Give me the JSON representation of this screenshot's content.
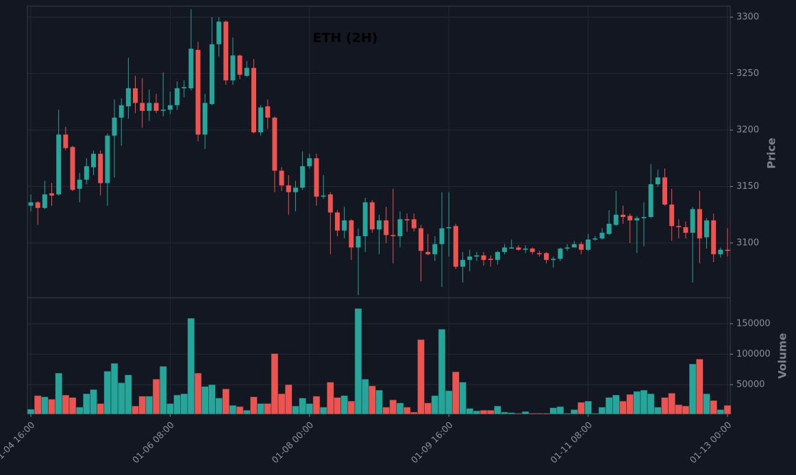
{
  "chart_data": {
    "type": "candlestick",
    "title": "ETH (2H)",
    "ylabel": "Price",
    "up_color": "#26a69a",
    "down_color": "#ef5350",
    "grid": true,
    "ylim": [
      3051.5,
      3309.7
    ],
    "yticks": [
      3100,
      3150,
      3200,
      3250,
      3300
    ],
    "categories": [
      "01-04 16:00",
      null,
      null,
      null,
      null,
      null,
      null,
      null,
      null,
      null,
      null,
      null,
      null,
      null,
      null,
      null,
      null,
      null,
      null,
      null,
      "01-06 08:00",
      null,
      null,
      null,
      null,
      null,
      null,
      null,
      null,
      null,
      null,
      null,
      null,
      null,
      null,
      null,
      null,
      null,
      null,
      null,
      "01-08 00:00",
      null,
      null,
      null,
      null,
      null,
      null,
      null,
      null,
      null,
      null,
      null,
      null,
      null,
      null,
      null,
      null,
      null,
      null,
      null,
      "01-09 16:00",
      null,
      null,
      null,
      null,
      null,
      null,
      null,
      null,
      null,
      null,
      null,
      null,
      null,
      null,
      null,
      null,
      null,
      null,
      null,
      "01-11 08:00",
      null,
      null,
      null,
      null,
      null,
      null,
      null,
      null,
      null,
      null,
      null,
      null,
      null,
      null,
      null,
      null,
      null,
      null,
      null,
      "01-13 00:00"
    ],
    "open": [
      3133,
      3136,
      3131,
      3144,
      3143,
      3196,
      3185,
      3148,
      3156,
      3167,
      3179,
      3153,
      3195,
      3211,
      3221,
      3237,
      3224,
      3217,
      3224,
      3217,
      3218,
      3222,
      3237,
      3237,
      3271,
      3196,
      3223,
      3276,
      3296,
      3244,
      3266,
      3248,
      3255,
      3198,
      3221,
      3211,
      3164,
      3151,
      3145,
      3149,
      3168,
      3175,
      3141,
      3143,
      3127,
      3111,
      3120,
      3096,
      3106,
      3136,
      3112,
      3120,
      3107,
      3106,
      3121,
      3121,
      3113,
      3092,
      3090,
      3099,
      3113,
      3115,
      3079,
      3085,
      3088,
      3089,
      3086,
      3085,
      3092,
      3095,
      3096,
      3094,
      3095,
      3091,
      3091,
      3085,
      3086,
      3095,
      3096,
      3099,
      3094,
      3103,
      3104,
      3108,
      3116,
      3125,
      3124,
      3120,
      3122,
      3123,
      3152,
      3158,
      3134,
      3115,
      3114,
      3109,
      3130,
      3105,
      3120,
      3090,
      3094
    ],
    "high": [
      3143,
      3137,
      3155,
      3153,
      3218,
      3203,
      3186,
      3162,
      3175,
      3182,
      3182,
      3197,
      3227,
      3228,
      3264,
      3248,
      3246,
      3236,
      3232,
      3251,
      3234,
      3243,
      3244,
      3307,
      3278,
      3232,
      3300,
      3300,
      3297,
      3282,
      3267,
      3261,
      3263,
      3222,
      3227,
      3212,
      3167,
      3160,
      3155,
      3181,
      3179,
      3179,
      3160,
      3145,
      3129,
      3132,
      3121,
      3113,
      3140,
      3138,
      3125,
      3132,
      3148,
      3128,
      3126,
      3126,
      3116,
      3108,
      3106,
      3145,
      3145,
      3117,
      3092,
      3094,
      3092,
      3092,
      3089,
      3093,
      3099,
      3103,
      3098,
      3098,
      3096,
      3093,
      3092,
      3088,
      3096,
      3099,
      3102,
      3101,
      3108,
      3106,
      3113,
      3129,
      3146,
      3133,
      3126,
      3124,
      3136,
      3170,
      3165,
      3166,
      3148,
      3121,
      3119,
      3132,
      3146,
      3122,
      3126,
      3096,
      3113
    ],
    "low": [
      3128,
      3116,
      3130,
      3133,
      3142,
      3182,
      3146,
      3136,
      3152,
      3160,
      3142,
      3133,
      3158,
      3186,
      3210,
      3215,
      3202,
      3208,
      3215,
      3212,
      3214,
      3218,
      3229,
      3235,
      3190,
      3183,
      3222,
      3265,
      3240,
      3240,
      3245,
      3247,
      3197,
      3195,
      3201,
      3145,
      3146,
      3125,
      3128,
      3147,
      3166,
      3133,
      3139,
      3090,
      3106,
      3104,
      3085,
      3054,
      3092,
      3109,
      3090,
      3100,
      3082,
      3096,
      3110,
      3110,
      3066,
      3089,
      3084,
      3061,
      3088,
      3077,
      3065,
      3075,
      3084,
      3080,
      3079,
      3081,
      3090,
      3095,
      3093,
      3091,
      3090,
      3088,
      3082,
      3078,
      3084,
      3093,
      3096,
      3090,
      3093,
      3102,
      3103,
      3107,
      3115,
      3117,
      3100,
      3091,
      3097,
      3122,
      3150,
      3133,
      3102,
      3104,
      3104,
      3065,
      3082,
      3095,
      3083,
      3087,
      3088
    ],
    "close": [
      3136,
      3131,
      3143,
      3142,
      3196,
      3184,
      3147,
      3156,
      3168,
      3179,
      3153,
      3195,
      3211,
      3222,
      3237,
      3224,
      3217,
      3224,
      3217,
      3218,
      3222,
      3237,
      3238,
      3272,
      3196,
      3224,
      3276,
      3296,
      3244,
      3266,
      3249,
      3255,
      3198,
      3220,
      3211,
      3164,
      3151,
      3145,
      3149,
      3168,
      3175,
      3141,
      3142,
      3127,
      3111,
      3120,
      3096,
      3106,
      3136,
      3112,
      3120,
      3107,
      3106,
      3121,
      3120,
      3113,
      3093,
      3090,
      3099,
      3113,
      3114,
      3079,
      3085,
      3088,
      3089,
      3085,
      3085,
      3092,
      3096,
      3096,
      3094,
      3095,
      3092,
      3090,
      3085,
      3086,
      3095,
      3096,
      3099,
      3094,
      3103,
      3104,
      3109,
      3117,
      3125,
      3123,
      3120,
      3122,
      3123,
      3152,
      3158,
      3134,
      3115,
      3114,
      3109,
      3130,
      3104,
      3120,
      3090,
      3094,
      3093
    ],
    "volume": {
      "ylabel": "Volume",
      "ylim": [
        1700,
        192700
      ],
      "yticks": [
        50000,
        100000,
        150000
      ],
      "values": [
        9600,
        32000,
        30000,
        26000,
        69000,
        33000,
        29000,
        13000,
        35000,
        42000,
        19000,
        72000,
        85000,
        53000,
        66000,
        15000,
        31000,
        31000,
        59000,
        80000,
        19000,
        33000,
        35000,
        159000,
        69000,
        47000,
        50000,
        28000,
        43000,
        16000,
        14000,
        8000,
        30000,
        19000,
        19000,
        101000,
        35000,
        50000,
        15000,
        28000,
        19000,
        31000,
        13000,
        54000,
        29000,
        32000,
        23000,
        175000,
        59000,
        48000,
        41000,
        13000,
        25000,
        20000,
        13000,
        5000,
        124000,
        20000,
        32000,
        141000,
        40000,
        71000,
        54000,
        11000,
        7000,
        8000,
        8000,
        15000,
        5000,
        4000,
        3000,
        6000,
        3000,
        3000,
        3000,
        12000,
        14000,
        3000,
        9000,
        21000,
        23000,
        3000,
        13000,
        29000,
        33000,
        23000,
        34000,
        39000,
        41000,
        35000,
        13000,
        29000,
        36000,
        17000,
        15000,
        84000,
        92000,
        35000,
        24000,
        9000,
        16000
      ]
    }
  }
}
